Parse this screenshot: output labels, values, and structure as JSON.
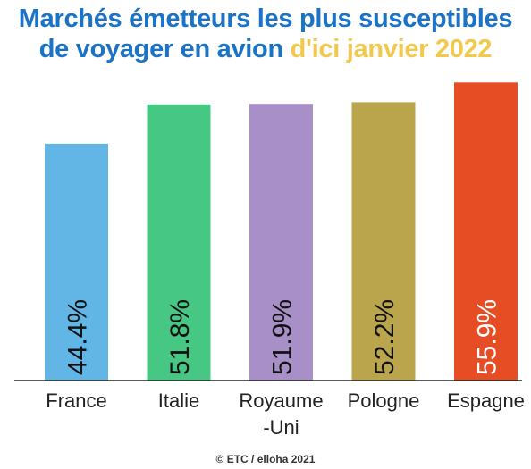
{
  "title": {
    "line1": "Marchés émetteurs les plus susceptibles",
    "line2_main": "de voyager en avion ",
    "line2_highlight": "d'ici janvier 2022"
  },
  "colors": {
    "title": "#1a73c6",
    "title_highlight": "#f2c94c"
  },
  "chart_data": {
    "type": "bar",
    "categories": [
      "France",
      "Italie",
      "Royaume\n-Uni",
      "Pologne",
      "Espagne"
    ],
    "values": [
      44.4,
      51.8,
      51.9,
      52.2,
      55.9
    ],
    "value_labels": [
      "44.4%",
      "51.8%",
      "51.9%",
      "52.2%",
      "55.9%"
    ],
    "colors": [
      "#62b6e6",
      "#47c784",
      "#a98fc7",
      "#bba54c",
      "#e64d25"
    ],
    "label_colors": [
      "#111111",
      "#111111",
      "#111111",
      "#111111",
      "#ffffff"
    ],
    "title": "",
    "xlabel": "",
    "ylabel": "",
    "grid": false,
    "legend": "none"
  },
  "credit": "© ETC / elloha 2021"
}
